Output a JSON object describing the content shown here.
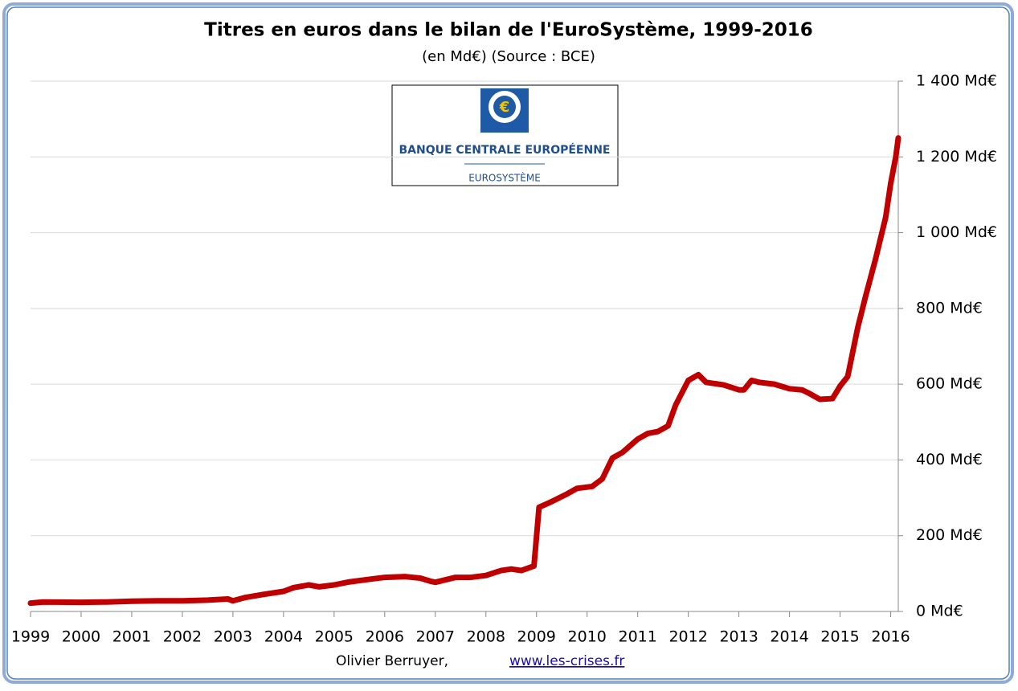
{
  "chart_data": {
    "type": "line",
    "title": "Titres en euros dans le bilan de l'EuroSystème, 1999-2016",
    "subtitle": "(en Md€) (Source : BCE)",
    "logo_text": [
      "BANQUE CENTRALE EUROPÉENNE",
      "EUROSYSTÈME"
    ],
    "credit": "Olivier Berruyer,",
    "credit_link": "www.les-crises.fr",
    "xlim": [
      1999,
      2016.15
    ],
    "xticks": [
      1999,
      2000,
      2001,
      2002,
      2003,
      2004,
      2005,
      2006,
      2007,
      2008,
      2009,
      2010,
      2011,
      2012,
      2013,
      2014,
      2015,
      2016
    ],
    "ylim": [
      0,
      1400
    ],
    "yticks": [
      {
        "value": 0,
        "label": "0 Md€"
      },
      {
        "value": 200,
        "label": "200 Md€"
      },
      {
        "value": 400,
        "label": "400 Md€"
      },
      {
        "value": 600,
        "label": "600 Md€"
      },
      {
        "value": 800,
        "label": "800 Md€"
      },
      {
        "value": 1000,
        "label": "1 000 Md€"
      },
      {
        "value": 1200,
        "label": "1 200 Md€"
      },
      {
        "value": 1400,
        "label": "1 400 Md€"
      }
    ],
    "grid": true,
    "x": [
      1999,
      1999.25,
      2000,
      2000.5,
      2001,
      2001.5,
      2002,
      2002.5,
      2002.9,
      2003.0,
      2003.25,
      2003.6,
      2004,
      2004.2,
      2004.5,
      2004.7,
      2005,
      2005.3,
      2005.7,
      2006,
      2006.4,
      2006.7,
      2006.9,
      2007.0,
      2007.4,
      2007.7,
      2008,
      2008.3,
      2008.5,
      2008.7,
      2008.95,
      2009.05,
      2009.3,
      2009.6,
      2009.8,
      2010.1,
      2010.3,
      2010.5,
      2010.7,
      2011,
      2011.2,
      2011.4,
      2011.6,
      2011.75,
      2012,
      2012.2,
      2012.35,
      2012.7,
      2013,
      2013.1,
      2013.25,
      2013.4,
      2013.7,
      2014,
      2014.25,
      2014.4,
      2014.6,
      2014.85,
      2015,
      2015.15,
      2015.35,
      2015.5,
      2015.7,
      2015.9,
      2016,
      2016.1,
      2016.15
    ],
    "series": [
      {
        "name": "Titres en euros",
        "color": "#c00000",
        "values": [
          22,
          25,
          24,
          25,
          27,
          28,
          28,
          30,
          33,
          28,
          37,
          45,
          53,
          63,
          70,
          65,
          70,
          78,
          85,
          90,
          92,
          88,
          80,
          77,
          90,
          90,
          95,
          108,
          112,
          108,
          120,
          275,
          290,
          310,
          325,
          330,
          350,
          405,
          420,
          455,
          470,
          475,
          490,
          545,
          610,
          625,
          605,
          598,
          585,
          585,
          610,
          605,
          600,
          588,
          585,
          575,
          560,
          562,
          595,
          620,
          750,
          830,
          930,
          1040,
          1130,
          1200,
          1250
        ]
      }
    ]
  }
}
